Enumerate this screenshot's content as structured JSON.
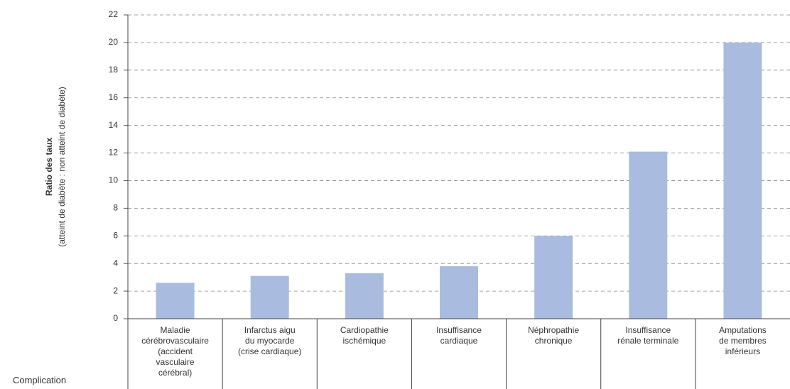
{
  "chart_data": {
    "type": "bar",
    "y_label": [
      "Ratio des taux",
      "(atteint de diabète : non atteint de diabète)"
    ],
    "x_label": "Complication",
    "categories": [
      "Maladie\ncérébrovasculaire\n(accident\nvasculaire\ncérébral)",
      "Infarctus aigu\ndu myocarde\n(crise cardiaque)",
      "Cardiopathie\nischémique",
      "Insuffisance\ncardiaque",
      "Néphropathie\nchronique",
      "Insuffisance\nrénale terminale",
      "Amputations\nde membres\ninférieurs"
    ],
    "values": [
      2.6,
      3.1,
      3.3,
      3.8,
      6.0,
      12.1,
      20.0
    ],
    "color": "#a9bce0",
    "ylim": [
      0,
      22
    ],
    "yticks": [
      0,
      2,
      4,
      6,
      8,
      10,
      12,
      14,
      16,
      18,
      20,
      22
    ],
    "grid": true
  }
}
